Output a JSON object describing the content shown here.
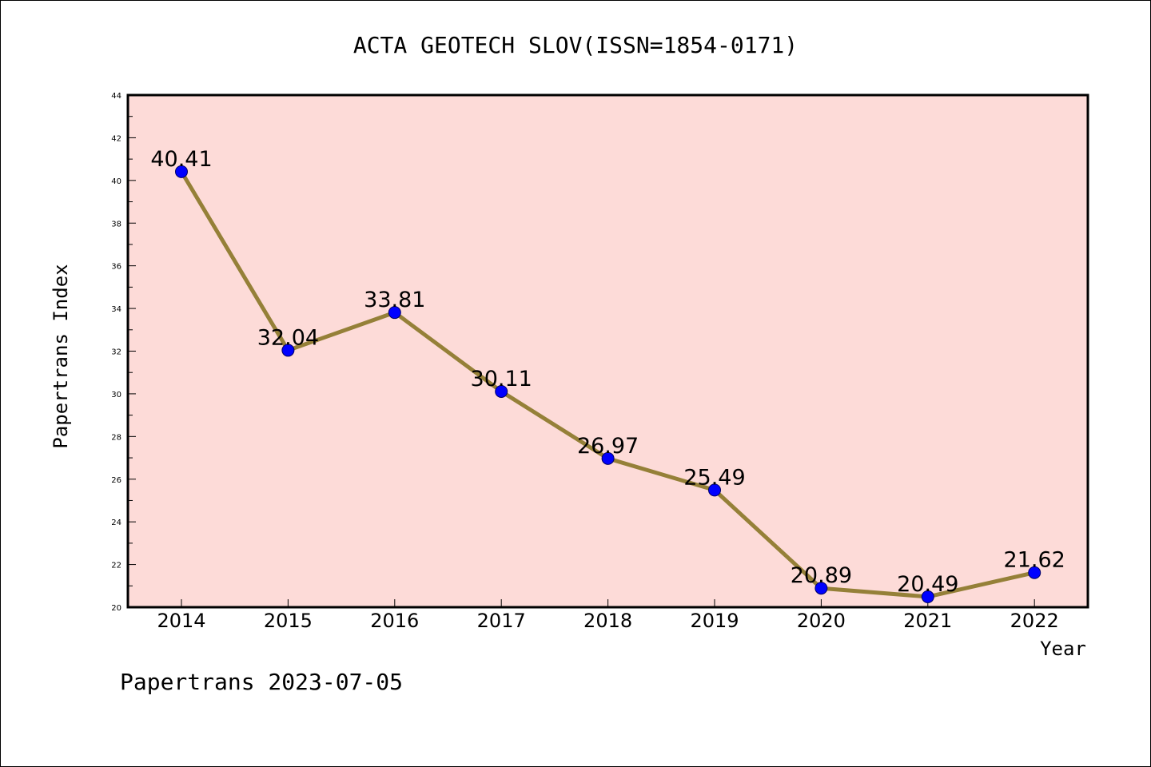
{
  "footer": "Papertrans 2023-07-05",
  "colors": {
    "plot_background": "#fddbd8",
    "line": "#958038",
    "marker_fill": "#0000ff",
    "marker_stroke": "#000066",
    "axis": "#000000"
  },
  "chart_data": {
    "type": "line",
    "title": "ACTA GEOTECH SLOV(ISSN=1854-0171)",
    "xlabel": "Year",
    "ylabel": "Papertrans Index",
    "categories": [
      "2014",
      "2015",
      "2016",
      "2017",
      "2018",
      "2019",
      "2020",
      "2021",
      "2022"
    ],
    "values": [
      40.41,
      32.04,
      33.81,
      30.11,
      26.97,
      25.49,
      20.89,
      20.49,
      21.62
    ],
    "data_labels": [
      "40.41",
      "32.04",
      "33.81",
      "30.11",
      "26.97",
      "25.49",
      "20.89",
      "20.49",
      "21.62"
    ],
    "ylim": [
      20,
      44
    ],
    "yticks": [
      "20",
      "22",
      "24",
      "26",
      "28",
      "30",
      "32",
      "34",
      "36",
      "38",
      "40",
      "42",
      "44"
    ],
    "grid": false,
    "legend": false
  }
}
